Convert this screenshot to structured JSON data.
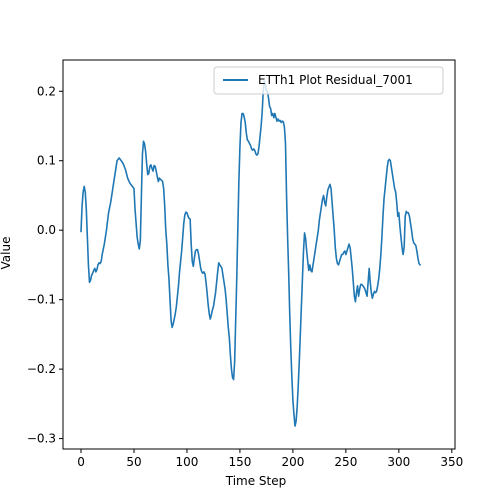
{
  "chart_data": {
    "type": "line",
    "title": "",
    "xlabel": "Time Step",
    "ylabel": "Value",
    "xlim": [
      -17,
      353
    ],
    "ylim": [
      -0.315,
      0.245
    ],
    "xticks": [
      0,
      50,
      100,
      150,
      200,
      250,
      300,
      350
    ],
    "yticks": [
      -0.3,
      -0.2,
      -0.1,
      0.0,
      0.1,
      0.2
    ],
    "ytick_labels": [
      "−0.3",
      "−0.2",
      "−0.1",
      "0.0",
      "0.1",
      "0.2"
    ],
    "grid": false,
    "legend_position": "top-right",
    "series": [
      {
        "name": "ETTh1 Plot Residual_7001",
        "color": "#1f77b4",
        "points": [
          [
            0,
            -0.002
          ],
          [
            1,
            0.035
          ],
          [
            2,
            0.055
          ],
          [
            3,
            0.063
          ],
          [
            4,
            0.055
          ],
          [
            5,
            0.03
          ],
          [
            6,
            -0.01
          ],
          [
            7,
            -0.05
          ],
          [
            8,
            -0.075
          ],
          [
            9,
            -0.072
          ],
          [
            10,
            -0.065
          ],
          [
            11,
            -0.062
          ],
          [
            12,
            -0.058
          ],
          [
            13,
            -0.055
          ],
          [
            14,
            -0.06
          ],
          [
            15,
            -0.057
          ],
          [
            16,
            -0.05
          ],
          [
            17,
            -0.047
          ],
          [
            18,
            -0.048
          ],
          [
            19,
            -0.045
          ],
          [
            20,
            -0.035
          ],
          [
            22,
            -0.02
          ],
          [
            24,
            0.0
          ],
          [
            26,
            0.025
          ],
          [
            28,
            0.04
          ],
          [
            30,
            0.06
          ],
          [
            32,
            0.08
          ],
          [
            34,
            0.1
          ],
          [
            36,
            0.104
          ],
          [
            38,
            0.1
          ],
          [
            40,
            0.095
          ],
          [
            42,
            0.087
          ],
          [
            44,
            0.075
          ],
          [
            46,
            0.068
          ],
          [
            48,
            0.064
          ],
          [
            50,
            0.06
          ],
          [
            51,
            0.03
          ],
          [
            52,
            0.01
          ],
          [
            53,
            -0.01
          ],
          [
            54,
            -0.02
          ],
          [
            55,
            -0.027
          ],
          [
            56,
            -0.015
          ],
          [
            57,
            0.05
          ],
          [
            58,
            0.11
          ],
          [
            59,
            0.128
          ],
          [
            60,
            0.124
          ],
          [
            61,
            0.113
          ],
          [
            62,
            0.095
          ],
          [
            63,
            0.08
          ],
          [
            64,
            0.082
          ],
          [
            65,
            0.092
          ],
          [
            66,
            0.094
          ],
          [
            67,
            0.089
          ],
          [
            68,
            0.085
          ],
          [
            69,
            0.093
          ],
          [
            70,
            0.092
          ],
          [
            71,
            0.085
          ],
          [
            72,
            0.077
          ],
          [
            73,
            0.07
          ],
          [
            74,
            0.075
          ],
          [
            75,
            0.073
          ],
          [
            76,
            0.072
          ],
          [
            77,
            0.07
          ],
          [
            78,
            0.06
          ],
          [
            79,
            0.035
          ],
          [
            80,
            0.0
          ],
          [
            81,
            -0.02
          ],
          [
            82,
            -0.05
          ],
          [
            83,
            -0.07
          ],
          [
            84,
            -0.1
          ],
          [
            85,
            -0.13
          ],
          [
            86,
            -0.14
          ],
          [
            87,
            -0.135
          ],
          [
            88,
            -0.128
          ],
          [
            89,
            -0.12
          ],
          [
            90,
            -0.11
          ],
          [
            91,
            -0.095
          ],
          [
            92,
            -0.08
          ],
          [
            93,
            -0.06
          ],
          [
            94,
            -0.045
          ],
          [
            95,
            -0.03
          ],
          [
            96,
            -0.01
          ],
          [
            97,
            0.01
          ],
          [
            98,
            0.022
          ],
          [
            99,
            0.026
          ],
          [
            100,
            0.025
          ],
          [
            101,
            0.02
          ],
          [
            102,
            0.017
          ],
          [
            103,
            0.016
          ],
          [
            104,
            -0.02
          ],
          [
            105,
            -0.045
          ],
          [
            106,
            -0.052
          ],
          [
            107,
            -0.04
          ],
          [
            108,
            -0.03
          ],
          [
            109,
            -0.028
          ],
          [
            110,
            -0.028
          ],
          [
            111,
            -0.035
          ],
          [
            112,
            -0.045
          ],
          [
            113,
            -0.055
          ],
          [
            114,
            -0.06
          ],
          [
            115,
            -0.062
          ],
          [
            116,
            -0.06
          ],
          [
            117,
            -0.063
          ],
          [
            118,
            -0.075
          ],
          [
            119,
            -0.09
          ],
          [
            120,
            -0.107
          ],
          [
            121,
            -0.12
          ],
          [
            122,
            -0.128
          ],
          [
            123,
            -0.122
          ],
          [
            124,
            -0.115
          ],
          [
            125,
            -0.11
          ],
          [
            126,
            -0.1
          ],
          [
            127,
            -0.09
          ],
          [
            128,
            -0.075
          ],
          [
            129,
            -0.06
          ],
          [
            130,
            -0.047
          ],
          [
            131,
            -0.05
          ],
          [
            132,
            -0.052
          ],
          [
            133,
            -0.055
          ],
          [
            134,
            -0.065
          ],
          [
            135,
            -0.075
          ],
          [
            136,
            -0.085
          ],
          [
            137,
            -0.1
          ],
          [
            138,
            -0.12
          ],
          [
            139,
            -0.14
          ],
          [
            140,
            -0.155
          ],
          [
            141,
            -0.18
          ],
          [
            142,
            -0.2
          ],
          [
            143,
            -0.212
          ],
          [
            144,
            -0.215
          ],
          [
            145,
            -0.19
          ],
          [
            146,
            -0.13
          ],
          [
            147,
            -0.07
          ],
          [
            148,
            0.0
          ],
          [
            149,
            0.07
          ],
          [
            150,
            0.12
          ],
          [
            151,
            0.155
          ],
          [
            152,
            0.168
          ],
          [
            153,
            0.168
          ],
          [
            154,
            0.163
          ],
          [
            155,
            0.155
          ],
          [
            156,
            0.14
          ],
          [
            157,
            0.13
          ],
          [
            158,
            0.128
          ],
          [
            159,
            0.125
          ],
          [
            160,
            0.122
          ],
          [
            161,
            0.117
          ],
          [
            162,
            0.115
          ],
          [
            163,
            0.117
          ],
          [
            164,
            0.115
          ],
          [
            165,
            0.11
          ],
          [
            166,
            0.108
          ],
          [
            167,
            0.11
          ],
          [
            168,
            0.12
          ],
          [
            169,
            0.135
          ],
          [
            170,
            0.15
          ],
          [
            171,
            0.17
          ],
          [
            172,
            0.2
          ],
          [
            173,
            0.215
          ],
          [
            174,
            0.21
          ],
          [
            175,
            0.2
          ],
          [
            176,
            0.2
          ],
          [
            177,
            0.19
          ],
          [
            178,
            0.178
          ],
          [
            179,
            0.175
          ],
          [
            180,
            0.165
          ],
          [
            181,
            0.168
          ],
          [
            182,
            0.162
          ],
          [
            183,
            0.168
          ],
          [
            184,
            0.162
          ],
          [
            185,
            0.157
          ],
          [
            186,
            0.16
          ],
          [
            187,
            0.157
          ],
          [
            188,
            0.158
          ],
          [
            189,
            0.155
          ],
          [
            190,
            0.157
          ],
          [
            191,
            0.156
          ],
          [
            192,
            0.148
          ],
          [
            193,
            0.125
          ],
          [
            194,
            0.05
          ],
          [
            195,
            -0.01
          ],
          [
            196,
            -0.06
          ],
          [
            197,
            -0.12
          ],
          [
            198,
            -0.17
          ],
          [
            199,
            -0.21
          ],
          [
            200,
            -0.245
          ],
          [
            201,
            -0.265
          ],
          [
            202,
            -0.282
          ],
          [
            203,
            -0.275
          ],
          [
            204,
            -0.255
          ],
          [
            205,
            -0.225
          ],
          [
            206,
            -0.19
          ],
          [
            207,
            -0.15
          ],
          [
            208,
            -0.11
          ],
          [
            209,
            -0.07
          ],
          [
            210,
            -0.03
          ],
          [
            211,
            -0.004
          ],
          [
            212,
            -0.012
          ],
          [
            213,
            -0.03
          ],
          [
            214,
            -0.045
          ],
          [
            215,
            -0.058
          ],
          [
            216,
            -0.05
          ],
          [
            217,
            -0.058
          ],
          [
            218,
            -0.06
          ],
          [
            219,
            -0.05
          ],
          [
            220,
            -0.04
          ],
          [
            221,
            -0.03
          ],
          [
            222,
            -0.02
          ],
          [
            223,
            -0.01
          ],
          [
            224,
            0.0
          ],
          [
            225,
            0.015
          ],
          [
            226,
            0.025
          ],
          [
            227,
            0.035
          ],
          [
            228,
            0.045
          ],
          [
            229,
            0.05
          ],
          [
            230,
            0.04
          ],
          [
            231,
            0.035
          ],
          [
            232,
            0.048
          ],
          [
            233,
            0.058
          ],
          [
            234,
            0.062
          ],
          [
            235,
            0.066
          ],
          [
            236,
            0.06
          ],
          [
            237,
            0.04
          ],
          [
            238,
            0.02
          ],
          [
            239,
            0.0
          ],
          [
            240,
            -0.025
          ],
          [
            241,
            -0.04
          ],
          [
            242,
            -0.048
          ],
          [
            243,
            -0.05
          ],
          [
            244,
            -0.045
          ],
          [
            245,
            -0.04
          ],
          [
            246,
            -0.035
          ],
          [
            247,
            -0.035
          ],
          [
            248,
            -0.032
          ],
          [
            249,
            -0.03
          ],
          [
            250,
            -0.035
          ],
          [
            251,
            -0.03
          ],
          [
            252,
            -0.025
          ],
          [
            253,
            -0.02
          ],
          [
            254,
            -0.025
          ],
          [
            255,
            -0.04
          ],
          [
            256,
            -0.055
          ],
          [
            257,
            -0.075
          ],
          [
            258,
            -0.095
          ],
          [
            259,
            -0.103
          ],
          [
            260,
            -0.09
          ],
          [
            261,
            -0.08
          ],
          [
            262,
            -0.095
          ],
          [
            263,
            -0.085
          ],
          [
            264,
            -0.078
          ],
          [
            265,
            -0.078
          ],
          [
            266,
            -0.08
          ],
          [
            267,
            -0.082
          ],
          [
            268,
            -0.085
          ],
          [
            269,
            -0.09
          ],
          [
            270,
            -0.095
          ],
          [
            271,
            -0.075
          ],
          [
            272,
            -0.055
          ],
          [
            273,
            -0.075
          ],
          [
            274,
            -0.09
          ],
          [
            275,
            -0.098
          ],
          [
            276,
            -0.092
          ],
          [
            277,
            -0.088
          ],
          [
            278,
            -0.09
          ],
          [
            279,
            -0.088
          ],
          [
            280,
            -0.08
          ],
          [
            281,
            -0.07
          ],
          [
            282,
            -0.055
          ],
          [
            283,
            -0.035
          ],
          [
            284,
            -0.01
          ],
          [
            285,
            0.02
          ],
          [
            286,
            0.045
          ],
          [
            287,
            0.06
          ],
          [
            288,
            0.075
          ],
          [
            289,
            0.09
          ],
          [
            290,
            0.1
          ],
          [
            291,
            0.102
          ],
          [
            292,
            0.1
          ],
          [
            293,
            0.09
          ],
          [
            294,
            0.08
          ],
          [
            295,
            0.07
          ],
          [
            296,
            0.06
          ],
          [
            297,
            0.055
          ],
          [
            298,
            0.04
          ],
          [
            299,
            0.02
          ],
          [
            300,
            0.025
          ],
          [
            301,
            0.005
          ],
          [
            302,
            -0.01
          ],
          [
            303,
            -0.025
          ],
          [
            304,
            -0.035
          ],
          [
            305,
            -0.025
          ],
          [
            306,
            0.02
          ],
          [
            307,
            0.027
          ],
          [
            308,
            0.025
          ],
          [
            309,
            0.025
          ],
          [
            310,
            0.02
          ],
          [
            311,
            0.01
          ],
          [
            312,
            0.0
          ],
          [
            313,
            -0.012
          ],
          [
            314,
            -0.018
          ],
          [
            315,
            -0.02
          ],
          [
            316,
            -0.022
          ],
          [
            317,
            -0.03
          ],
          [
            318,
            -0.04
          ],
          [
            319,
            -0.048
          ],
          [
            320,
            -0.05
          ]
        ]
      }
    ]
  }
}
